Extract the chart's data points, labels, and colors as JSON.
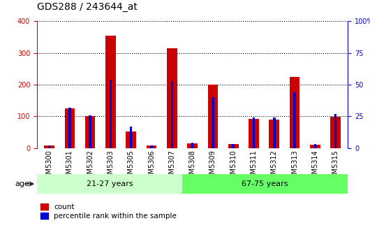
{
  "title": "GDS288 / 243644_at",
  "samples": [
    "GSM5300",
    "GSM5301",
    "GSM5302",
    "GSM5303",
    "GSM5305",
    "GSM5306",
    "GSM5307",
    "GSM5308",
    "GSM5309",
    "GSM5310",
    "GSM5311",
    "GSM5312",
    "GSM5313",
    "GSM5314",
    "GSM5315"
  ],
  "count_values": [
    8,
    125,
    100,
    355,
    52,
    8,
    315,
    15,
    200,
    12,
    92,
    90,
    225,
    10,
    98
  ],
  "percentile_values": [
    2,
    32,
    26,
    54,
    17,
    2,
    53,
    4,
    40,
    3,
    24,
    24,
    44,
    3,
    27
  ],
  "group1_label": "21-27 years",
  "group2_label": "67-75 years",
  "group1_count": 7,
  "group2_count": 8,
  "age_label": "age",
  "bar_color_count": "#cc0000",
  "bar_color_pct": "#0000cc",
  "left_axis_color": "#cc0000",
  "right_axis_color": "#0000cc",
  "ylim_left": [
    0,
    400
  ],
  "ylim_right": [
    0,
    100
  ],
  "yticks_left": [
    0,
    100,
    200,
    300,
    400
  ],
  "yticks_right": [
    0,
    25,
    50,
    75,
    100
  ],
  "grid_color": "#000000",
  "bg_color": "#ffffff",
  "plot_bg": "#ffffff",
  "group1_bg": "#ccffcc",
  "group2_bg": "#66ff66",
  "legend_count": "count",
  "legend_pct": "percentile rank within the sample",
  "title_fontsize": 10,
  "tick_fontsize": 7,
  "label_fontsize": 8
}
